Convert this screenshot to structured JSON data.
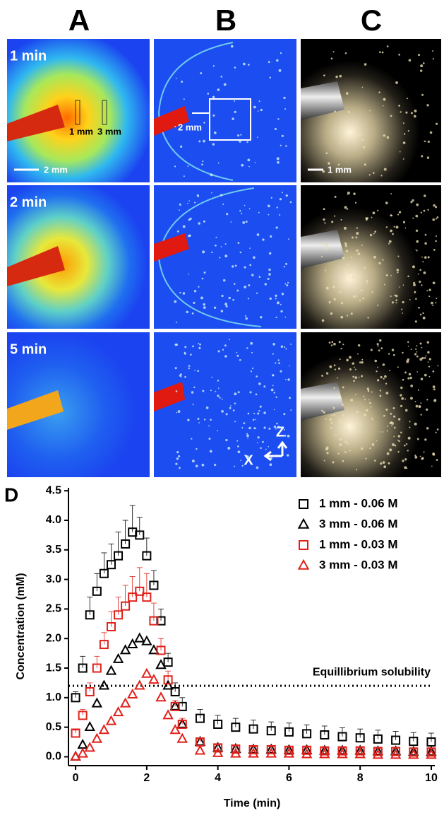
{
  "figure": {
    "column_labels": [
      "A",
      "B",
      "C"
    ],
    "row_labels": [
      "1 min",
      "2 min",
      "5 min"
    ],
    "annotations": {
      "a_1mm": "1 mm",
      "a_3mm": "3 mm",
      "a_scale": "2 mm",
      "b_scale": "2 mm",
      "c_scale": "1 mm",
      "axis_z": "Z",
      "axis_x": "X"
    },
    "chart_label": "D"
  },
  "chart_data": {
    "type": "scatter",
    "x_label": "Time (min)",
    "y_label": "Concentration (mM)",
    "xlim": [
      -0.2,
      10.1
    ],
    "ylim": [
      -0.15,
      4.55
    ],
    "xticks": [
      0,
      2,
      4,
      6,
      8,
      10
    ],
    "yticks": [
      {
        "value": 0,
        "label": "0.0"
      },
      0.5,
      {
        "value": 1,
        "label": "1.0"
      },
      1.5,
      {
        "value": 2,
        "label": "2.0"
      },
      2.5,
      {
        "value": 3,
        "label": "3.0"
      },
      3.5,
      {
        "value": 4,
        "label": "4.0"
      },
      4.5
    ],
    "legend": "upper right",
    "reference_line": {
      "value": 1.2,
      "label": "Equillibrium solubility"
    },
    "x": [
      0,
      0.2,
      0.4,
      0.6,
      0.8,
      1.0,
      1.2,
      1.4,
      1.6,
      1.8,
      2.0,
      2.2,
      2.4,
      2.6,
      2.8,
      3.0,
      3.5,
      4.0,
      4.5,
      5.0,
      5.5,
      6.0,
      6.5,
      7.0,
      7.5,
      8.0,
      8.5,
      9.0,
      9.5,
      10.0
    ],
    "series": [
      {
        "name": "1 mm - 0.06 M",
        "color": "#000000",
        "marker": "square",
        "values": [
          1.0,
          1.5,
          2.4,
          2.8,
          3.1,
          3.25,
          3.4,
          3.6,
          3.8,
          3.75,
          3.4,
          2.9,
          2.3,
          1.6,
          1.1,
          0.85,
          0.65,
          0.55,
          0.5,
          0.47,
          0.44,
          0.42,
          0.39,
          0.37,
          0.34,
          0.32,
          0.3,
          0.28,
          0.26,
          0.25
        ],
        "errors": [
          0.1,
          0.2,
          0.3,
          0.3,
          0.35,
          0.35,
          0.4,
          0.4,
          0.45,
          0.3,
          0.3,
          0.25,
          0.2,
          0.15,
          0.15,
          0.15,
          0.15,
          0.15,
          0.15,
          0.15,
          0.15,
          0.15,
          0.15,
          0.15,
          0.15,
          0.15,
          0.15,
          0.15,
          0.15,
          0.15
        ]
      },
      {
        "name": "3 mm - 0.06 M",
        "color": "#000000",
        "marker": "triangle",
        "values": [
          0,
          0.2,
          0.5,
          0.9,
          1.2,
          1.45,
          1.65,
          1.8,
          1.9,
          2.0,
          1.95,
          1.8,
          1.55,
          1.2,
          0.85,
          0.55,
          0.25,
          0.15,
          0.13,
          0.12,
          0.12,
          0.11,
          0.11,
          0.1,
          0.1,
          0.1,
          0.09,
          0.09,
          0.08,
          0.08
        ]
      },
      {
        "name": "1 mm - 0.03 M",
        "color": "#e0211b",
        "marker": "square",
        "values": [
          0.4,
          0.7,
          1.1,
          1.5,
          1.9,
          2.2,
          2.4,
          2.55,
          2.7,
          2.8,
          2.7,
          2.3,
          1.8,
          1.3,
          0.85,
          0.55,
          0.25,
          0.15,
          0.13,
          0.12,
          0.12,
          0.11,
          0.11,
          0.1,
          0.1,
          0.1,
          0.09,
          0.09,
          0.08,
          0.08
        ],
        "errors": [
          0.05,
          0.1,
          0.15,
          0.2,
          0.2,
          0.25,
          0.3,
          0.35,
          0.35,
          0.4,
          0.4,
          0.3,
          0.2,
          0.15,
          0.1,
          0.1,
          0.05,
          0.05,
          0.05,
          0.05,
          0.05,
          0.05,
          0.05,
          0.05,
          0.05,
          0.05,
          0.05,
          0.05,
          0.05,
          0.05
        ]
      },
      {
        "name": "3 mm - 0.03 M",
        "color": "#e0211b",
        "marker": "triangle",
        "values": [
          0,
          0.05,
          0.15,
          0.3,
          0.45,
          0.6,
          0.75,
          0.9,
          1.05,
          1.2,
          1.4,
          1.3,
          1.0,
          0.7,
          0.45,
          0.3,
          0.1,
          0.06,
          0.05,
          0.05,
          0.05,
          0.05,
          0.04,
          0.04,
          0.04,
          0.04,
          0.03,
          0.03,
          0.03,
          0.03
        ]
      }
    ]
  }
}
